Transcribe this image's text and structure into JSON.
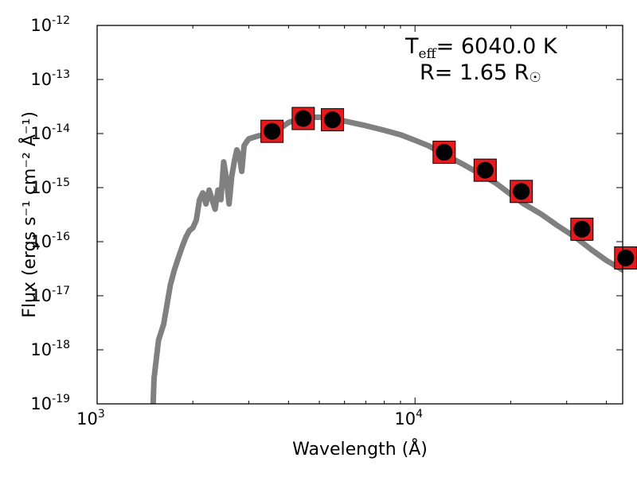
{
  "chart_data": {
    "type": "scatter",
    "xlabel": "Wavelength (Å)",
    "ylabel": "Flux (ergs s⁻¹ cm⁻² Å⁻¹)",
    "x_scale": "log",
    "y_scale": "log",
    "xlim": [
      1000,
      45000
    ],
    "ylim": [
      1e-19,
      1e-12
    ],
    "x_ticks": [
      {
        "value": 1000,
        "base": "10",
        "exp": "3"
      },
      {
        "value": 10000,
        "base": "10",
        "exp": "4"
      }
    ],
    "y_ticks": [
      {
        "value": 1e-12,
        "base": "10",
        "exp": "-12"
      },
      {
        "value": 1e-13,
        "base": "10",
        "exp": "-13"
      },
      {
        "value": 1e-14,
        "base": "10",
        "exp": "-14"
      },
      {
        "value": 1e-15,
        "base": "10",
        "exp": "-15"
      },
      {
        "value": 1e-16,
        "base": "10",
        "exp": "-16"
      },
      {
        "value": 1e-17,
        "base": "10",
        "exp": "-17"
      },
      {
        "value": 1e-18,
        "base": "10",
        "exp": "-18"
      },
      {
        "value": 1e-19,
        "base": "10",
        "exp": "-19"
      }
    ],
    "annotation": {
      "teff_prefix": "T",
      "teff_sub": "eff",
      "teff_text": "= 6040.0 K",
      "radius_text": "R= 1.65 R",
      "radius_sub": "☉"
    },
    "series": [
      {
        "kind": "model-spectrum",
        "color": "#808080",
        "x": [
          1500,
          1510,
          1560,
          1620,
          1700,
          1750,
          1800,
          1850,
          1900,
          1950,
          2000,
          2050,
          2100,
          2150,
          2200,
          2250,
          2300,
          2350,
          2400,
          2450,
          2500,
          2550,
          2600,
          2650,
          2700,
          2750,
          2800,
          2850,
          2900,
          2950,
          3000,
          3200,
          3500,
          3800,
          4000,
          4500,
          5000,
          5500,
          6000,
          7000,
          8000,
          9000,
          10000,
          11000,
          12000,
          14000,
          16000,
          18000,
          20000,
          22000,
          25000,
          28000,
          32000,
          36000,
          40000,
          45000
        ],
        "y": [
          1e-19,
          3e-19,
          1.5e-18,
          3e-18,
          1.6e-17,
          3e-17,
          5e-17,
          8e-17,
          1.2e-16,
          1.6e-16,
          1.8e-16,
          2.5e-16,
          6e-16,
          8e-16,
          5e-16,
          9e-16,
          6e-16,
          4e-16,
          9e-16,
          6e-16,
          3e-15,
          1.5e-15,
          5e-16,
          1.6e-15,
          3e-15,
          5e-15,
          4e-15,
          2e-15,
          6e-15,
          7e-15,
          8e-15,
          9e-15,
          1e-14,
          1.3e-14,
          1.6e-14,
          2e-14,
          2e-14,
          1.9e-14,
          1.7e-14,
          1.4e-14,
          1.15e-14,
          9.5e-15,
          7.5e-15,
          6e-15,
          4.5e-15,
          2.8e-15,
          1.8e-15,
          1.2e-15,
          7.5e-16,
          5e-16,
          3.2e-16,
          2e-16,
          1.2e-16,
          7e-17,
          4.5e-17,
          3e-17
        ]
      },
      {
        "kind": "photometry-points",
        "marker_fill": "#e41a1c",
        "dot_fill": "#000000",
        "x": [
          3550,
          4450,
          5500,
          12350,
          16620,
          21590,
          33500,
          46000
        ],
        "y": [
          1.1e-14,
          1.9e-14,
          1.8e-14,
          4.5e-15,
          2.1e-15,
          8.5e-16,
          1.7e-16,
          5e-17
        ]
      }
    ]
  }
}
